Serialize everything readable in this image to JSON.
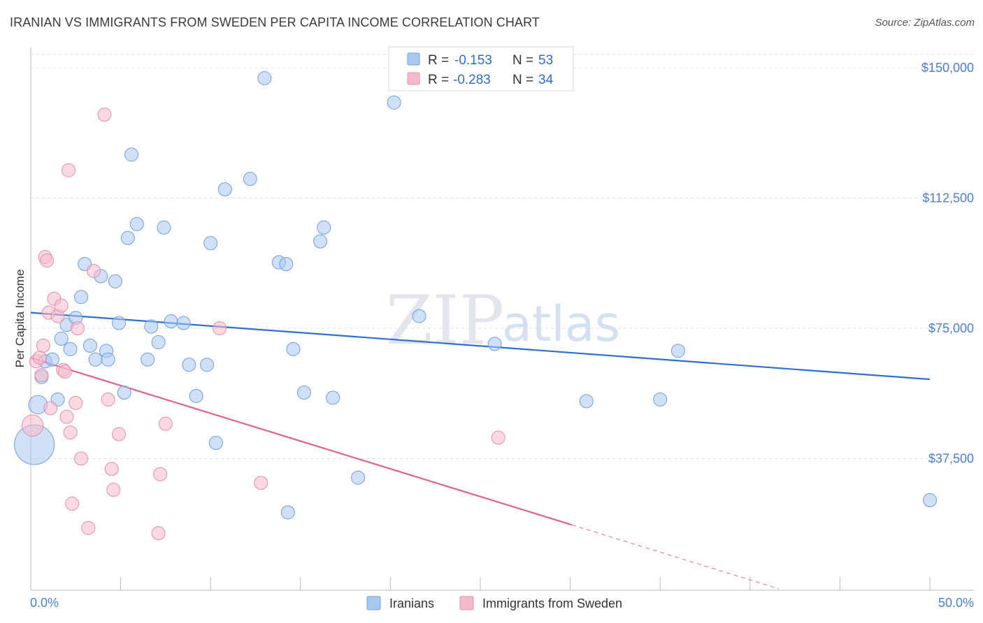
{
  "title": "IRANIAN VS IMMIGRANTS FROM SWEDEN PER CAPITA INCOME CORRELATION CHART",
  "source": "Source: ZipAtlas.com",
  "watermark": {
    "zip": "ZIP",
    "atlas": "atlas"
  },
  "chart_data": {
    "type": "scatter",
    "ylabel": "Per Capita Income",
    "xlabel": "",
    "xlim": [
      0,
      50
    ],
    "ylim": [
      0,
      155000
    ],
    "x_tick_labels": {
      "min": "0.0%",
      "max": "50.0%"
    },
    "y_ticks": [
      {
        "value": 37500,
        "label": "$37,500"
      },
      {
        "value": 75000,
        "label": "$75,000"
      },
      {
        "value": 112500,
        "label": "$112,500"
      },
      {
        "value": 150000,
        "label": "$150,000"
      }
    ],
    "grid": "horizontal-dashed",
    "legend_top": [
      {
        "r_label": "R = ",
        "r": "-0.153",
        "n_label": "N = ",
        "n": "53",
        "color": "#a9c8f0"
      },
      {
        "r_label": "R = ",
        "r": "-0.283",
        "n_label": "N = ",
        "n": "34",
        "color": "#f6b9cb"
      }
    ],
    "series": [
      {
        "name": "Iranians",
        "color": "#a9c8f0",
        "edge": "#6f9fe0",
        "trend_color": "#2e6fd0",
        "trend": {
          "x0": 0,
          "y0": 79500,
          "x1": 50,
          "y1": 60300,
          "solid_until": 50
        },
        "points": [
          [
            0.2,
            41500,
            3
          ],
          [
            0.4,
            53000,
            1.4
          ],
          [
            0.6,
            61000,
            1
          ],
          [
            0.8,
            65500,
            1
          ],
          [
            1.2,
            66000,
            1
          ],
          [
            1.5,
            54500,
            1
          ],
          [
            1.7,
            72000,
            1
          ],
          [
            2.0,
            76000,
            1
          ],
          [
            2.2,
            69000,
            1
          ],
          [
            2.5,
            78000,
            1
          ],
          [
            2.8,
            84000,
            1
          ],
          [
            3.0,
            93500,
            1
          ],
          [
            3.3,
            70000,
            1
          ],
          [
            3.6,
            66000,
            1
          ],
          [
            3.9,
            90000,
            1
          ],
          [
            4.2,
            68500,
            1
          ],
          [
            4.3,
            66000,
            1
          ],
          [
            4.7,
            88500,
            1
          ],
          [
            4.9,
            76500,
            1
          ],
          [
            5.2,
            56500,
            1
          ],
          [
            5.4,
            101000,
            1
          ],
          [
            5.6,
            125000,
            1
          ],
          [
            5.9,
            105000,
            1
          ],
          [
            6.5,
            66000,
            1
          ],
          [
            6.7,
            75500,
            1
          ],
          [
            7.1,
            71000,
            1
          ],
          [
            7.4,
            104000,
            1
          ],
          [
            7.8,
            77000,
            1
          ],
          [
            8.5,
            76500,
            1
          ],
          [
            8.8,
            64500,
            1
          ],
          [
            9.2,
            55500,
            1
          ],
          [
            9.8,
            64500,
            1
          ],
          [
            10.0,
            99500,
            1
          ],
          [
            10.3,
            42000,
            1
          ],
          [
            10.8,
            115000,
            1
          ],
          [
            12.2,
            118000,
            1
          ],
          [
            13.0,
            147000,
            1
          ],
          [
            13.8,
            94000,
            1
          ],
          [
            14.2,
            93500,
            1
          ],
          [
            14.3,
            22000,
            1
          ],
          [
            14.6,
            69000,
            1
          ],
          [
            15.2,
            56500,
            1
          ],
          [
            16.1,
            100000,
            1
          ],
          [
            16.3,
            104000,
            1
          ],
          [
            16.8,
            55000,
            1
          ],
          [
            18.2,
            32000,
            1
          ],
          [
            20.2,
            140000,
            1
          ],
          [
            21.6,
            78500,
            1
          ],
          [
            25.8,
            70500,
            1
          ],
          [
            30.9,
            54000,
            1
          ],
          [
            35.0,
            54500,
            1
          ],
          [
            36.0,
            68500,
            1
          ],
          [
            50.0,
            25500,
            1
          ]
        ]
      },
      {
        "name": "Immigrants from Sweden",
        "color": "#f6b9cb",
        "edge": "#e58eaa",
        "trend_color": "#e0628d",
        "trend": {
          "x0": 0,
          "y0": 66500,
          "x1": 41.6,
          "y1": 0,
          "solid_until": 30.1
        },
        "points": [
          [
            0.1,
            47000,
            1.6
          ],
          [
            0.3,
            65500,
            1
          ],
          [
            0.5,
            66500,
            1
          ],
          [
            0.6,
            61500,
            1
          ],
          [
            0.7,
            70000,
            1
          ],
          [
            0.8,
            95500,
            1
          ],
          [
            0.9,
            94500,
            1
          ],
          [
            1.0,
            79500,
            1
          ],
          [
            1.1,
            52000,
            1
          ],
          [
            1.3,
            83500,
            1
          ],
          [
            1.5,
            78500,
            1
          ],
          [
            1.7,
            81500,
            1
          ],
          [
            1.8,
            63000,
            1
          ],
          [
            1.9,
            62500,
            1
          ],
          [
            2.0,
            49500,
            1
          ],
          [
            2.1,
            120500,
            1
          ],
          [
            2.2,
            45000,
            1
          ],
          [
            2.3,
            24500,
            1
          ],
          [
            2.5,
            53500,
            1
          ],
          [
            2.6,
            75000,
            1
          ],
          [
            2.8,
            37500,
            1
          ],
          [
            3.2,
            17500,
            1
          ],
          [
            3.5,
            91500,
            1
          ],
          [
            4.1,
            136500,
            1
          ],
          [
            4.3,
            54500,
            1
          ],
          [
            4.5,
            34500,
            1
          ],
          [
            4.6,
            28500,
            1
          ],
          [
            4.9,
            44500,
            1
          ],
          [
            7.1,
            16000,
            1
          ],
          [
            7.2,
            33000,
            1
          ],
          [
            7.5,
            47500,
            1
          ],
          [
            10.5,
            75000,
            1
          ],
          [
            12.8,
            30500,
            1
          ],
          [
            26.0,
            43500,
            1
          ]
        ]
      }
    ]
  }
}
